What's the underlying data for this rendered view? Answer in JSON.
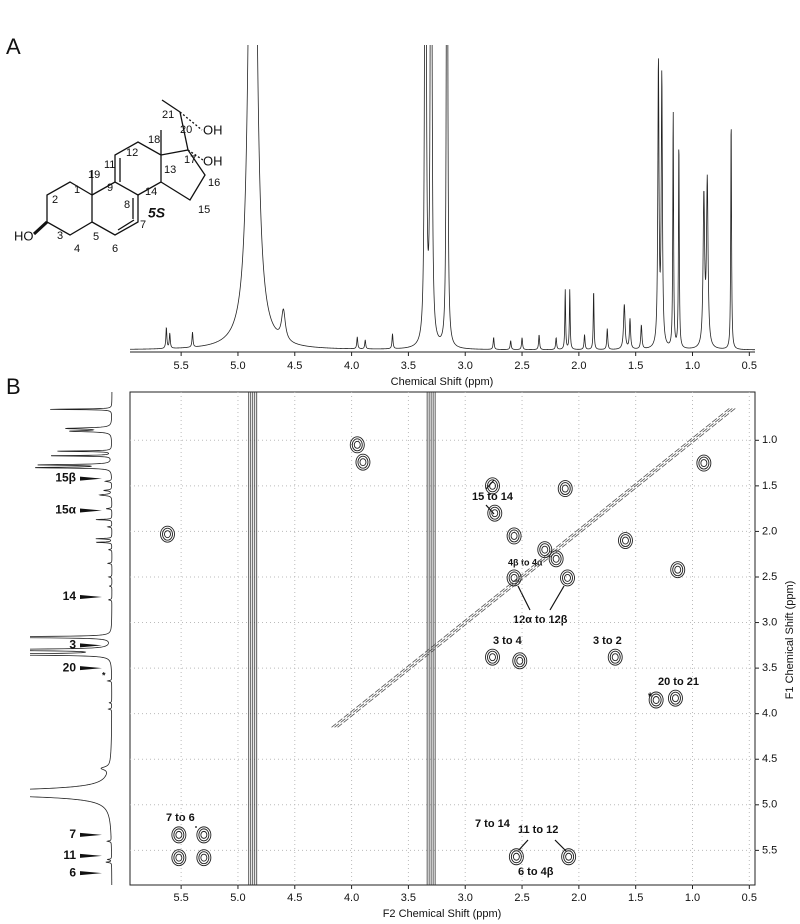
{
  "panels": [
    "A",
    "B"
  ],
  "molecule": {
    "atoms": [
      "21",
      "20",
      "18",
      "12",
      "11",
      "13",
      "17",
      "19",
      "1",
      "9",
      "14",
      "16",
      "2",
      "8",
      "15",
      "3",
      "5",
      "7",
      "4",
      "6"
    ],
    "compound": "5S",
    "groups": [
      "OH",
      "OH",
      "HO"
    ]
  },
  "spectrum": {
    "xlabel": "Chemical Shift (ppm)",
    "xlim": [
      5.95,
      0.45
    ],
    "xticks": [
      5.5,
      {
        "value": 5,
        "label": "5.0"
      },
      4.5,
      {
        "value": 4,
        "label": "4.0"
      },
      3.5,
      {
        "value": 3,
        "label": "3.0"
      },
      2.5,
      {
        "value": 2,
        "label": "2.0"
      },
      1.5,
      {
        "value": 1,
        "label": "1.0"
      },
      0.5
    ],
    "peaks": [
      {
        "ppm": 4.87,
        "height": 3,
        "width": 0.03
      },
      {
        "ppm": 4.6,
        "height": 0.1,
        "width": 0.02
      },
      {
        "ppm": 3.35,
        "height": 3,
        "width": 0.006
      },
      {
        "ppm": 3.3,
        "height": 3,
        "width": 0.006
      },
      {
        "ppm": 3.16,
        "height": 3,
        "width": 0.005
      },
      {
        "ppm": 5.63,
        "height": 0.07,
        "width": 0.005
      },
      {
        "ppm": 5.6,
        "height": 0.05,
        "width": 0.005
      },
      {
        "ppm": 5.4,
        "height": 0.05,
        "width": 0.005
      },
      {
        "ppm": 3.95,
        "height": 0.04,
        "width": 0.005
      },
      {
        "ppm": 3.88,
        "height": 0.03,
        "width": 0.005
      },
      {
        "ppm": 3.64,
        "height": 0.05,
        "width": 0.005
      },
      {
        "ppm": 2.75,
        "height": 0.04,
        "width": 0.005
      },
      {
        "ppm": 2.6,
        "height": 0.03,
        "width": 0.005
      },
      {
        "ppm": 2.5,
        "height": 0.04,
        "width": 0.005
      },
      {
        "ppm": 2.35,
        "height": 0.05,
        "width": 0.005
      },
      {
        "ppm": 2.2,
        "height": 0.04,
        "width": 0.005
      },
      {
        "ppm": 2.12,
        "height": 0.2,
        "width": 0.004
      },
      {
        "ppm": 2.08,
        "height": 0.2,
        "width": 0.004
      },
      {
        "ppm": 1.95,
        "height": 0.05,
        "width": 0.005
      },
      {
        "ppm": 1.87,
        "height": 0.2,
        "width": 0.004
      },
      {
        "ppm": 1.75,
        "height": 0.07,
        "width": 0.005
      },
      {
        "ppm": 1.6,
        "height": 0.15,
        "width": 0.008
      },
      {
        "ppm": 1.55,
        "height": 0.1,
        "width": 0.006
      },
      {
        "ppm": 1.45,
        "height": 0.08,
        "width": 0.006
      },
      {
        "ppm": 1.3,
        "height": 0.95,
        "width": 0.006
      },
      {
        "ppm": 1.27,
        "height": 0.9,
        "width": 0.006
      },
      {
        "ppm": 1.17,
        "height": 0.8,
        "width": 0.004
      },
      {
        "ppm": 1.12,
        "height": 0.7,
        "width": 0.004
      },
      {
        "ppm": 0.9,
        "height": 0.5,
        "width": 0.008
      },
      {
        "ppm": 0.87,
        "height": 0.55,
        "width": 0.008
      },
      {
        "ppm": 0.66,
        "height": 0.78,
        "width": 0.004
      }
    ]
  },
  "cosy": {
    "xlabel": "F2 Chemical Shift (ppm)",
    "ylabel": "F1 Chemical Shift (ppm)",
    "xlim": [
      5.95,
      0.45
    ],
    "ylim": [
      0.47,
      5.88
    ],
    "xticks": [
      5.5,
      {
        "value": 5,
        "label": "5.0"
      },
      4.5,
      {
        "value": 4,
        "label": "4.0"
      },
      3.5,
      {
        "value": 3,
        "label": "3.0"
      },
      2.5,
      {
        "value": 2,
        "label": "2.0"
      },
      1.5,
      {
        "value": 1,
        "label": "1.0"
      },
      0.5
    ],
    "yticks": [
      {
        "value": 1,
        "label": "1.0"
      },
      1.5,
      {
        "value": 2,
        "label": "2.0"
      },
      2.5,
      {
        "value": 3,
        "label": "3.0"
      },
      3.5,
      {
        "value": 4,
        "label": "4.0"
      },
      4.5,
      {
        "value": 5,
        "label": "5.0"
      },
      5.5
    ],
    "streaks": [
      4.87,
      3.3
    ],
    "diagonal": [
      0.65,
      4.15
    ],
    "cross_peaks": [
      [
        3.95,
        1.05
      ],
      [
        3.9,
        1.24
      ],
      [
        2.12,
        1.53
      ],
      [
        0.9,
        1.25
      ],
      [
        2.76,
        1.5
      ],
      [
        2.74,
        1.8
      ],
      [
        2.57,
        2.05
      ],
      [
        5.62,
        2.03
      ],
      [
        2.57,
        2.51
      ],
      [
        2.1,
        2.51
      ],
      [
        2.76,
        3.38
      ],
      [
        2.52,
        3.42
      ],
      [
        1.68,
        3.38
      ],
      [
        1.32,
        3.85
      ],
      [
        1.15,
        3.83
      ],
      [
        5.52,
        5.33
      ],
      [
        5.3,
        5.33
      ],
      [
        5.52,
        5.58
      ],
      [
        5.3,
        5.58
      ],
      [
        2.09,
        5.57
      ],
      [
        2.55,
        5.57
      ],
      [
        1.59,
        2.1
      ],
      [
        1.13,
        2.42
      ],
      [
        2.3,
        2.2
      ],
      [
        2.2,
        2.3
      ]
    ],
    "f1_labels": [
      {
        "label": "15β",
        "ppm": 1.42
      },
      {
        "label": "15α",
        "ppm": 1.77
      },
      {
        "label": "14",
        "ppm": 2.72
      },
      {
        "label": "3",
        "ppm": 3.25
      },
      {
        "label": "20",
        "ppm": 3.5
      },
      {
        "label": "7",
        "ppm": 5.33
      },
      {
        "label": "11",
        "ppm": 5.56
      },
      {
        "label": "6",
        "ppm": 5.75
      }
    ],
    "annotations": [
      "15 to 14",
      "4β to 4α",
      "12α to 12β",
      "3 to 4",
      "3 to 2",
      "20 to 21",
      "*",
      "7 to 6",
      "7 to 14",
      "11 to 12",
      "6 to 4β",
      "*"
    ]
  }
}
